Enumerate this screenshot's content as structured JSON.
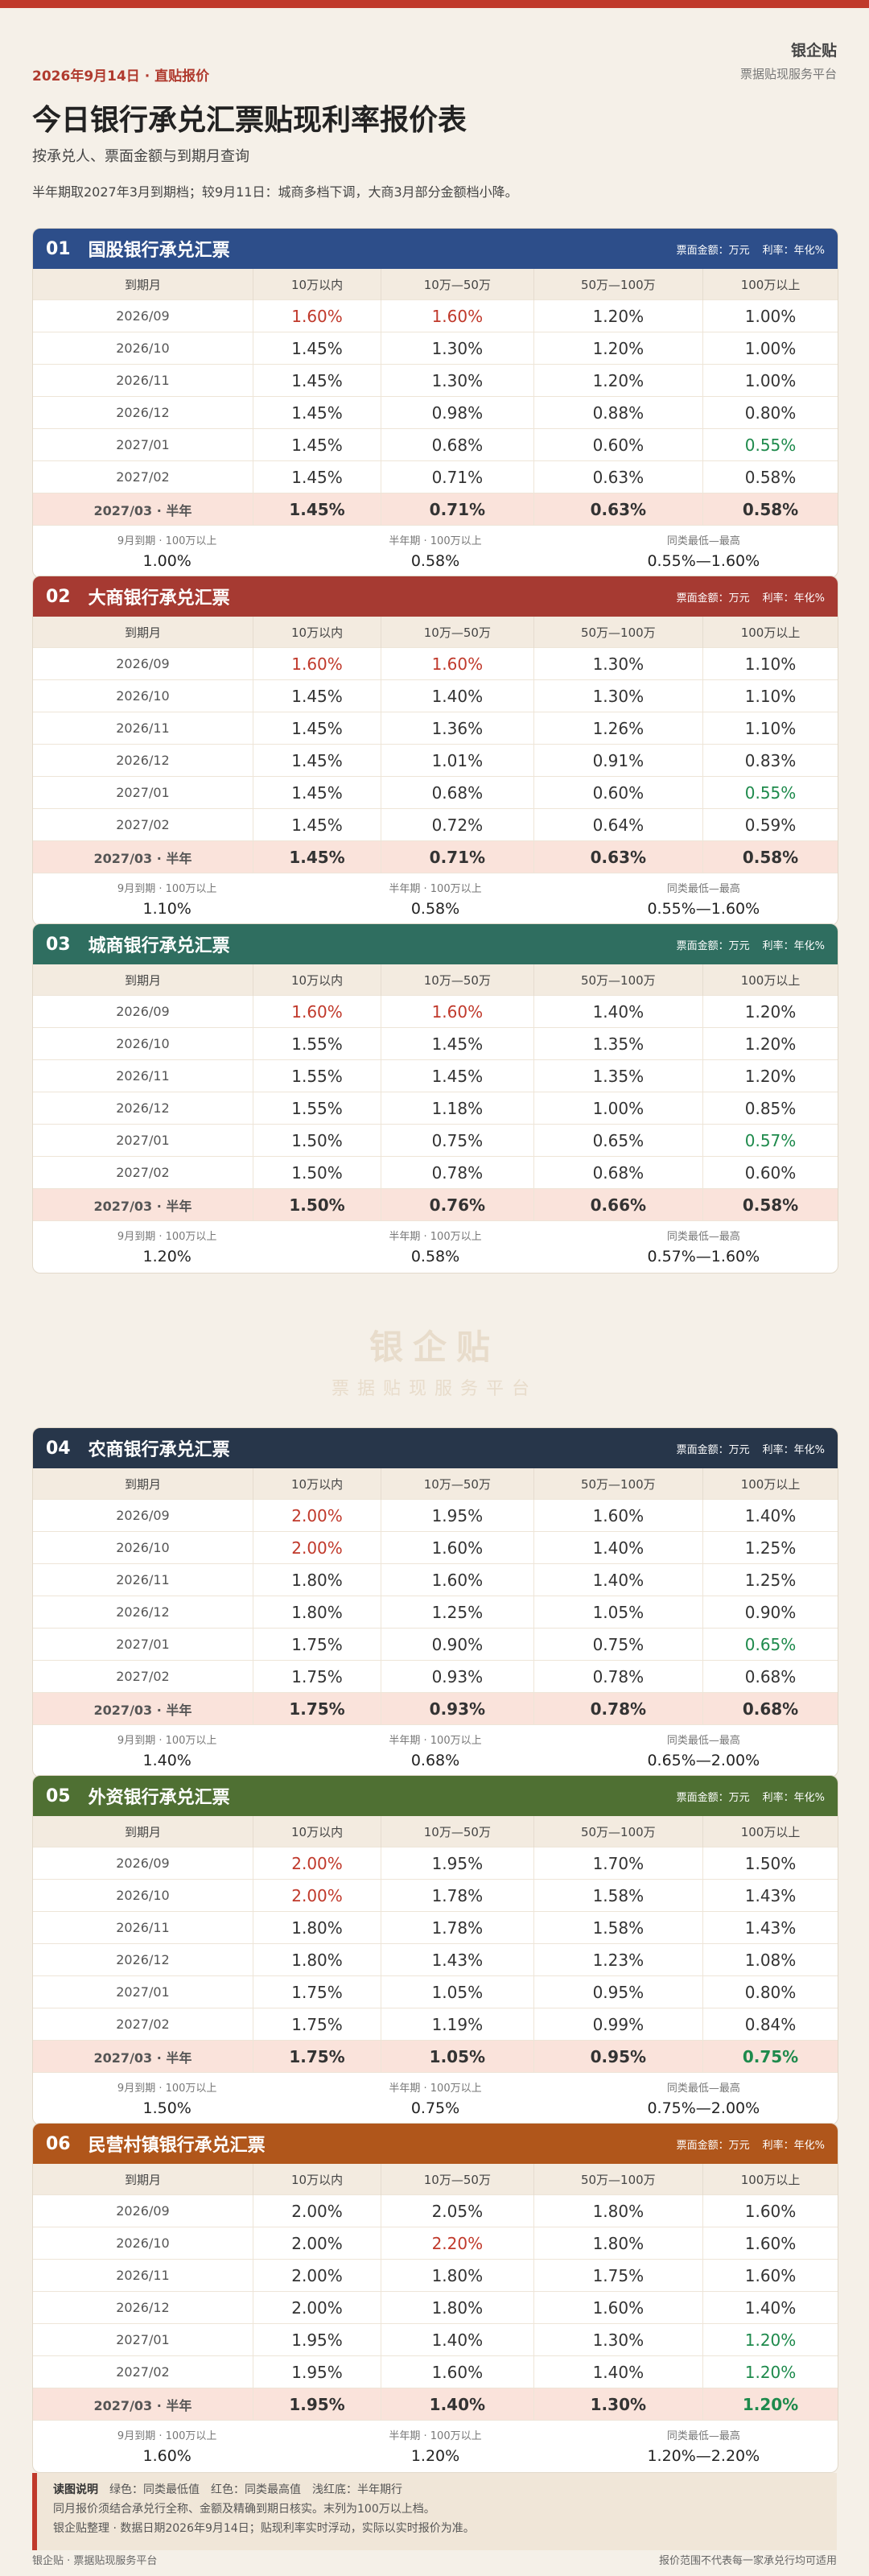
{
  "brand": {
    "name": "银企贴",
    "subtitle": "票据贴现服务平台"
  },
  "header": {
    "dateline": "2026年9月14日 · 直贴报价",
    "title": "今日银行承兑汇票贴现利率报价表",
    "subtitle": "按承兑人、票面金额与到期月查询",
    "note": "半年期取2027年3月到期档；较9月11日：城商多档下调，大商3月部分金额档小降。"
  },
  "meta": {
    "amount_unit": "票面金额：万元",
    "rate_unit": "利率：年化%"
  },
  "columns": [
    "到期月",
    "10万以内",
    "10万—50万",
    "50万—100万",
    "100万以上"
  ],
  "foot_labels": [
    "9月到期 · 100万以上",
    "半年期 · 100万以上",
    "同类最低—最高"
  ],
  "colors": {
    "highest": "#c0392b",
    "lowest": "#1e8a4c",
    "half_year_bg": "#fae3db"
  },
  "sections": [
    {
      "num": "01",
      "title": "国股银行承兑汇票",
      "color": "#2d4e8a",
      "rows": [
        {
          "term": "2026/09",
          "v": [
            "1.60%",
            "1.60%",
            "1.20%",
            "1.00%"
          ],
          "hi": [
            0,
            1
          ],
          "lo": []
        },
        {
          "term": "2026/10",
          "v": [
            "1.45%",
            "1.30%",
            "1.20%",
            "1.00%"
          ],
          "hi": [],
          "lo": []
        },
        {
          "term": "2026/11",
          "v": [
            "1.45%",
            "1.30%",
            "1.20%",
            "1.00%"
          ],
          "hi": [],
          "lo": []
        },
        {
          "term": "2026/12",
          "v": [
            "1.45%",
            "0.98%",
            "0.88%",
            "0.80%"
          ],
          "hi": [],
          "lo": []
        },
        {
          "term": "2027/01",
          "v": [
            "1.45%",
            "0.68%",
            "0.60%",
            "0.55%"
          ],
          "hi": [],
          "lo": [
            3
          ]
        },
        {
          "term": "2027/02",
          "v": [
            "1.45%",
            "0.71%",
            "0.63%",
            "0.58%"
          ],
          "hi": [],
          "lo": []
        },
        {
          "term": "2027/03 · 半年",
          "v": [
            "1.45%",
            "0.71%",
            "0.63%",
            "0.58%"
          ],
          "hi": [],
          "lo": [],
          "half": true
        }
      ],
      "foot": [
        "1.00%",
        "0.58%",
        "0.55%—1.60%"
      ]
    },
    {
      "num": "02",
      "title": "大商银行承兑汇票",
      "color": "#a63a32",
      "rows": [
        {
          "term": "2026/09",
          "v": [
            "1.60%",
            "1.60%",
            "1.30%",
            "1.10%"
          ],
          "hi": [
            0,
            1
          ],
          "lo": []
        },
        {
          "term": "2026/10",
          "v": [
            "1.45%",
            "1.40%",
            "1.30%",
            "1.10%"
          ],
          "hi": [],
          "lo": []
        },
        {
          "term": "2026/11",
          "v": [
            "1.45%",
            "1.36%",
            "1.26%",
            "1.10%"
          ],
          "hi": [],
          "lo": []
        },
        {
          "term": "2026/12",
          "v": [
            "1.45%",
            "1.01%",
            "0.91%",
            "0.83%"
          ],
          "hi": [],
          "lo": []
        },
        {
          "term": "2027/01",
          "v": [
            "1.45%",
            "0.68%",
            "0.60%",
            "0.55%"
          ],
          "hi": [],
          "lo": [
            3
          ]
        },
        {
          "term": "2027/02",
          "v": [
            "1.45%",
            "0.72%",
            "0.64%",
            "0.59%"
          ],
          "hi": [],
          "lo": []
        },
        {
          "term": "2027/03 · 半年",
          "v": [
            "1.45%",
            "0.71%",
            "0.63%",
            "0.58%"
          ],
          "hi": [],
          "lo": [],
          "half": true
        }
      ],
      "foot": [
        "1.10%",
        "0.58%",
        "0.55%—1.60%"
      ]
    },
    {
      "num": "03",
      "title": "城商银行承兑汇票",
      "color": "#2f6e60",
      "rows": [
        {
          "term": "2026/09",
          "v": [
            "1.60%",
            "1.60%",
            "1.40%",
            "1.20%"
          ],
          "hi": [
            0,
            1
          ],
          "lo": []
        },
        {
          "term": "2026/10",
          "v": [
            "1.55%",
            "1.45%",
            "1.35%",
            "1.20%"
          ],
          "hi": [],
          "lo": []
        },
        {
          "term": "2026/11",
          "v": [
            "1.55%",
            "1.45%",
            "1.35%",
            "1.20%"
          ],
          "hi": [],
          "lo": []
        },
        {
          "term": "2026/12",
          "v": [
            "1.55%",
            "1.18%",
            "1.00%",
            "0.85%"
          ],
          "hi": [],
          "lo": []
        },
        {
          "term": "2027/01",
          "v": [
            "1.50%",
            "0.75%",
            "0.65%",
            "0.57%"
          ],
          "hi": [],
          "lo": [
            3
          ]
        },
        {
          "term": "2027/02",
          "v": [
            "1.50%",
            "0.78%",
            "0.68%",
            "0.60%"
          ],
          "hi": [],
          "lo": []
        },
        {
          "term": "2027/03 · 半年",
          "v": [
            "1.50%",
            "0.76%",
            "0.66%",
            "0.58%"
          ],
          "hi": [],
          "lo": [],
          "half": true
        }
      ],
      "foot": [
        "1.20%",
        "0.58%",
        "0.57%—1.60%"
      ]
    },
    {
      "num": "04",
      "title": "农商银行承兑汇票",
      "color": "#27364a",
      "rows": [
        {
          "term": "2026/09",
          "v": [
            "2.00%",
            "1.95%",
            "1.60%",
            "1.40%"
          ],
          "hi": [
            0
          ],
          "lo": []
        },
        {
          "term": "2026/10",
          "v": [
            "2.00%",
            "1.60%",
            "1.40%",
            "1.25%"
          ],
          "hi": [
            0
          ],
          "lo": []
        },
        {
          "term": "2026/11",
          "v": [
            "1.80%",
            "1.60%",
            "1.40%",
            "1.25%"
          ],
          "hi": [],
          "lo": []
        },
        {
          "term": "2026/12",
          "v": [
            "1.80%",
            "1.25%",
            "1.05%",
            "0.90%"
          ],
          "hi": [],
          "lo": []
        },
        {
          "term": "2027/01",
          "v": [
            "1.75%",
            "0.90%",
            "0.75%",
            "0.65%"
          ],
          "hi": [],
          "lo": [
            3
          ]
        },
        {
          "term": "2027/02",
          "v": [
            "1.75%",
            "0.93%",
            "0.78%",
            "0.68%"
          ],
          "hi": [],
          "lo": []
        },
        {
          "term": "2027/03 · 半年",
          "v": [
            "1.75%",
            "0.93%",
            "0.78%",
            "0.68%"
          ],
          "hi": [],
          "lo": [],
          "half": true
        }
      ],
      "foot": [
        "1.40%",
        "0.68%",
        "0.65%—2.00%"
      ]
    },
    {
      "num": "05",
      "title": "外资银行承兑汇票",
      "color": "#4f7033",
      "rows": [
        {
          "term": "2026/09",
          "v": [
            "2.00%",
            "1.95%",
            "1.70%",
            "1.50%"
          ],
          "hi": [
            0
          ],
          "lo": []
        },
        {
          "term": "2026/10",
          "v": [
            "2.00%",
            "1.78%",
            "1.58%",
            "1.43%"
          ],
          "hi": [
            0
          ],
          "lo": []
        },
        {
          "term": "2026/11",
          "v": [
            "1.80%",
            "1.78%",
            "1.58%",
            "1.43%"
          ],
          "hi": [],
          "lo": []
        },
        {
          "term": "2026/12",
          "v": [
            "1.80%",
            "1.43%",
            "1.23%",
            "1.08%"
          ],
          "hi": [],
          "lo": []
        },
        {
          "term": "2027/01",
          "v": [
            "1.75%",
            "1.05%",
            "0.95%",
            "0.80%"
          ],
          "hi": [],
          "lo": []
        },
        {
          "term": "2027/02",
          "v": [
            "1.75%",
            "1.19%",
            "0.99%",
            "0.84%"
          ],
          "hi": [],
          "lo": []
        },
        {
          "term": "2027/03 · 半年",
          "v": [
            "1.75%",
            "1.05%",
            "0.95%",
            "0.75%"
          ],
          "hi": [],
          "lo": [
            3
          ],
          "half": true
        }
      ],
      "foot": [
        "1.50%",
        "0.75%",
        "0.75%—2.00%"
      ]
    },
    {
      "num": "06",
      "title": "民营村镇银行承兑汇票",
      "color": "#b0561b",
      "rows": [
        {
          "term": "2026/09",
          "v": [
            "2.00%",
            "2.05%",
            "1.80%",
            "1.60%"
          ],
          "hi": [],
          "lo": []
        },
        {
          "term": "2026/10",
          "v": [
            "2.00%",
            "2.20%",
            "1.80%",
            "1.60%"
          ],
          "hi": [
            1
          ],
          "lo": []
        },
        {
          "term": "2026/11",
          "v": [
            "2.00%",
            "1.80%",
            "1.75%",
            "1.60%"
          ],
          "hi": [],
          "lo": []
        },
        {
          "term": "2026/12",
          "v": [
            "2.00%",
            "1.80%",
            "1.60%",
            "1.40%"
          ],
          "hi": [],
          "lo": []
        },
        {
          "term": "2027/01",
          "v": [
            "1.95%",
            "1.40%",
            "1.30%",
            "1.20%"
          ],
          "hi": [],
          "lo": [
            3
          ]
        },
        {
          "term": "2027/02",
          "v": [
            "1.95%",
            "1.60%",
            "1.40%",
            "1.20%"
          ],
          "hi": [],
          "lo": [
            3
          ]
        },
        {
          "term": "2027/03 · 半年",
          "v": [
            "1.95%",
            "1.40%",
            "1.30%",
            "1.20%"
          ],
          "hi": [],
          "lo": [
            3
          ],
          "half": true
        }
      ],
      "foot": [
        "1.60%",
        "1.20%",
        "1.20%—2.20%"
      ]
    }
  ],
  "watermark": {
    "name": "银企贴",
    "sub": "票据贴现服务平台"
  },
  "legend": {
    "title": "读图说明",
    "line1": "绿色：同类最低值　红色：同类最高值　浅红底：半年期行",
    "line2": "同月报价须结合承兑行全称、金额及精确到期日核实。末列为100万以上档。",
    "line3": "银企贴整理 · 数据日期2026年9月14日；贴现利率实时浮动，实际以实时报价为准。"
  },
  "footer": {
    "left": "银企贴 · 票据贴现服务平台",
    "right": "报价范围不代表每一家承兑行均可适用"
  }
}
